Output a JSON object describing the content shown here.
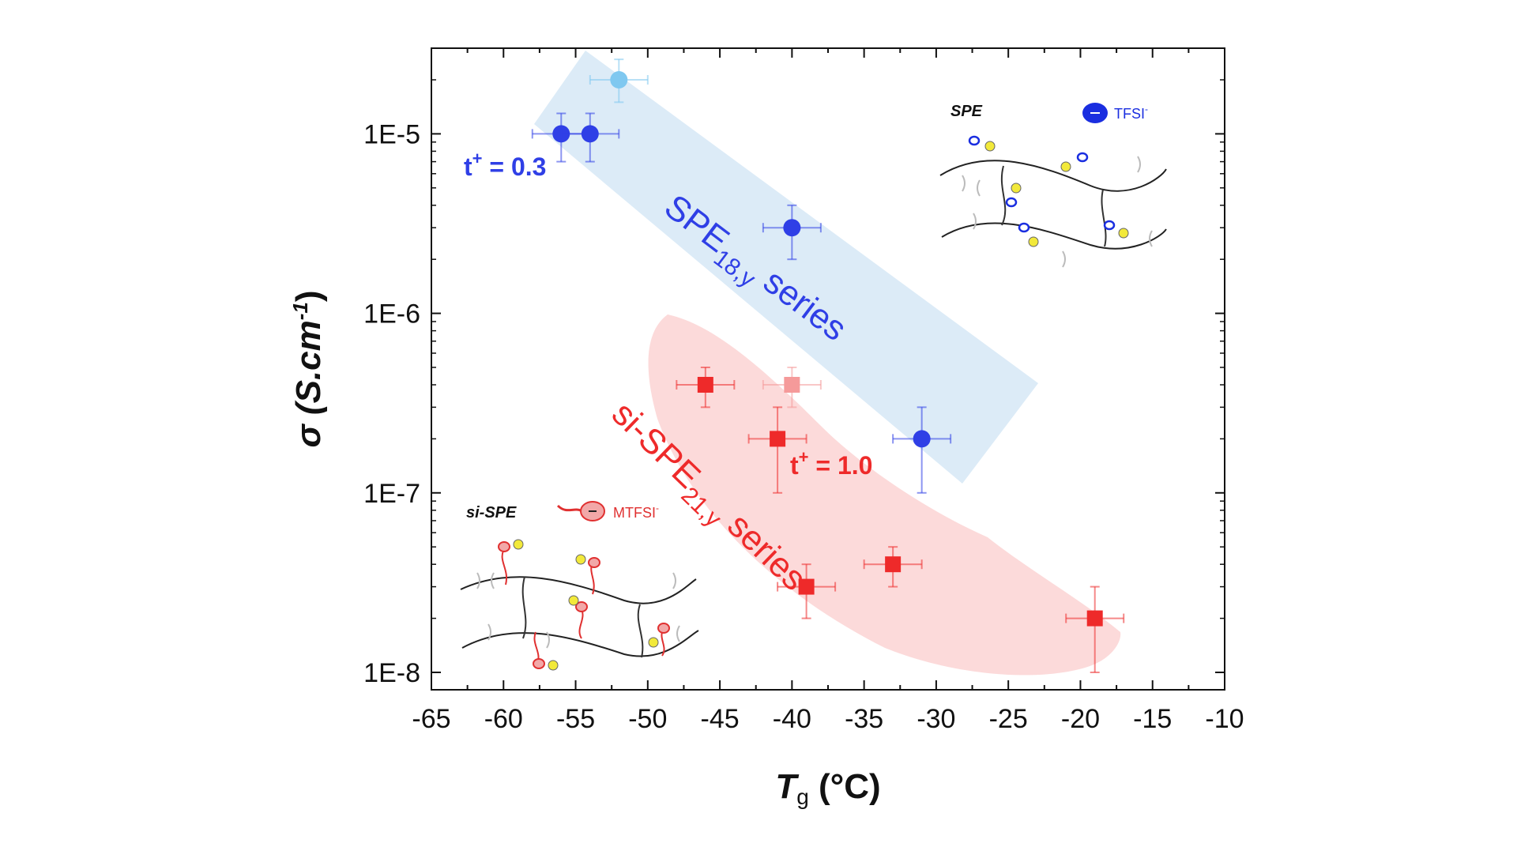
{
  "chart_data": {
    "type": "scatter",
    "xlabel_main": "T",
    "xlabel_sub": "g",
    "xlabel_unit": " (°C)",
    "ylabel_symbol": "σ",
    "ylabel_unit_pre": " (S.cm",
    "ylabel_unit_sup": "-1",
    "ylabel_unit_post": ")",
    "xlim": [
      -65,
      -10
    ],
    "ylim": [
      8e-09,
      3e-05
    ],
    "yscale": "log",
    "x_ticks": [
      -65,
      -60,
      -55,
      -50,
      -45,
      -40,
      -35,
      -30,
      -25,
      -20,
      -15,
      -10
    ],
    "y_ticks": [
      {
        "value": 1e-05,
        "label": "1E-5"
      },
      {
        "value": 1e-06,
        "label": "1E-6"
      },
      {
        "value": 1e-07,
        "label": "1E-7"
      },
      {
        "value": 1e-08,
        "label": "1E-8"
      }
    ],
    "series": [
      {
        "marker": "circle",
        "color": "#2f3fe6",
        "points": [
          {
            "x": -56,
            "y": 1e-05,
            "xerr": 2,
            "ylo": 7e-06,
            "yhi": 1.3e-05
          },
          {
            "x": -54,
            "y": 1e-05,
            "xerr": 2,
            "ylo": 7e-06,
            "yhi": 1.3e-05
          },
          {
            "x": -52,
            "y": 2e-05,
            "xerr": 2,
            "ylo": 1.5e-05,
            "yhi": 2.6e-05,
            "color": "#7fc8f0"
          },
          {
            "x": -40,
            "y": 3e-06,
            "xerr": 2,
            "ylo": 2e-06,
            "yhi": 4e-06
          },
          {
            "x": -31,
            "y": 2e-07,
            "xerr": 2,
            "ylo": 1e-07,
            "yhi": 3e-07
          }
        ]
      },
      {
        "marker": "square",
        "color": "#ee2a2a",
        "points": [
          {
            "x": -46,
            "y": 4e-07,
            "xerr": 2,
            "ylo": 3e-07,
            "yhi": 5e-07
          },
          {
            "x": -40,
            "y": 4e-07,
            "xerr": 2,
            "ylo": 3e-07,
            "yhi": 5e-07,
            "color": "#f59a9a"
          },
          {
            "x": -41,
            "y": 2e-07,
            "xerr": 2,
            "ylo": 1e-07,
            "yhi": 3e-07
          },
          {
            "x": -39,
            "y": 3e-08,
            "xerr": 2,
            "ylo": 2e-08,
            "yhi": 4e-08
          },
          {
            "x": -33,
            "y": 4e-08,
            "xerr": 2,
            "ylo": 3e-08,
            "yhi": 5e-08
          },
          {
            "x": -19,
            "y": 2e-08,
            "xerr": 2,
            "ylo": 1e-08,
            "yhi": 3e-08
          }
        ]
      }
    ],
    "annotations": {
      "spe_series": {
        "main": "SPE",
        "sub": "18,y",
        "post": " series",
        "color": "#2f3fe6"
      },
      "sispe_series": {
        "main": "si-SPE",
        "sub": "21,y",
        "post": " series",
        "color": "#ee2a2a"
      },
      "tplus_spe": {
        "pre": "t",
        "sup": "+",
        "post": " = 0.3",
        "color": "#2f3fe6"
      },
      "tplus_sispe": {
        "pre": "t",
        "sup": "+",
        "post": " = 1.0",
        "color": "#ee2a2a"
      }
    },
    "insets": {
      "spe": {
        "title": "SPE",
        "ion_label": "TFSI",
        "ion_sup": "-",
        "ion_color": "#1a2ee0"
      },
      "sispe": {
        "title": "si-SPE",
        "ion_label": "MTFSI",
        "ion_sup": "-",
        "ion_color": "#e03030"
      }
    },
    "colors": {
      "spe_band": "#dcebf7",
      "sispe_band": "#fcdada",
      "plus_ion": "#f2e93a"
    }
  }
}
